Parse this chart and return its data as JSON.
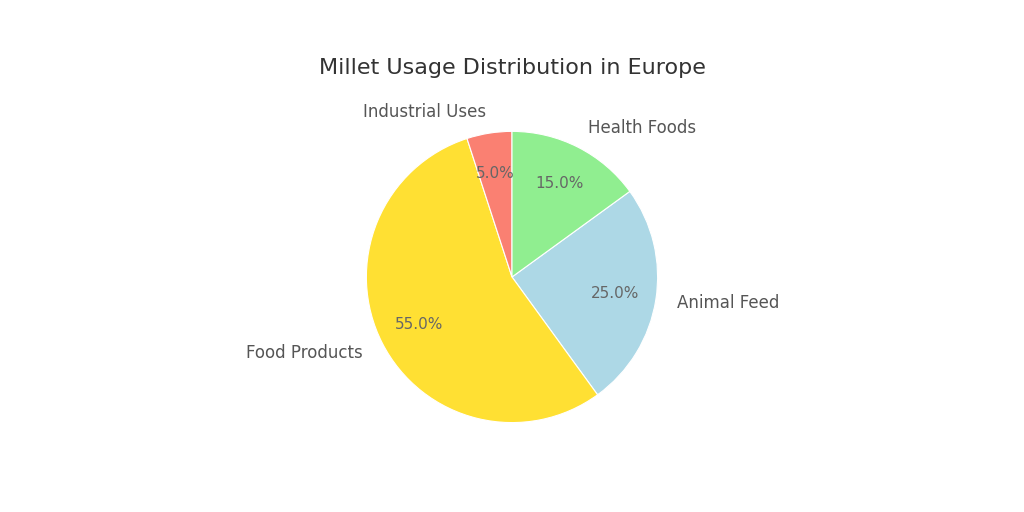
{
  "title": "Millet Usage Distribution in Europe",
  "labels": [
    "Animal Feed",
    "Food Products",
    "Industrial Uses",
    "Health Foods"
  ],
  "values": [
    25.0,
    55.0,
    5.0,
    15.0
  ],
  "colors": [
    "#ADD8E6",
    "#FFE033",
    "#FA8072",
    "#90EE90"
  ],
  "startangle": 36,
  "title_fontsize": 16,
  "label_fontsize": 12,
  "pct_color": "#666666",
  "label_color": "#555555"
}
